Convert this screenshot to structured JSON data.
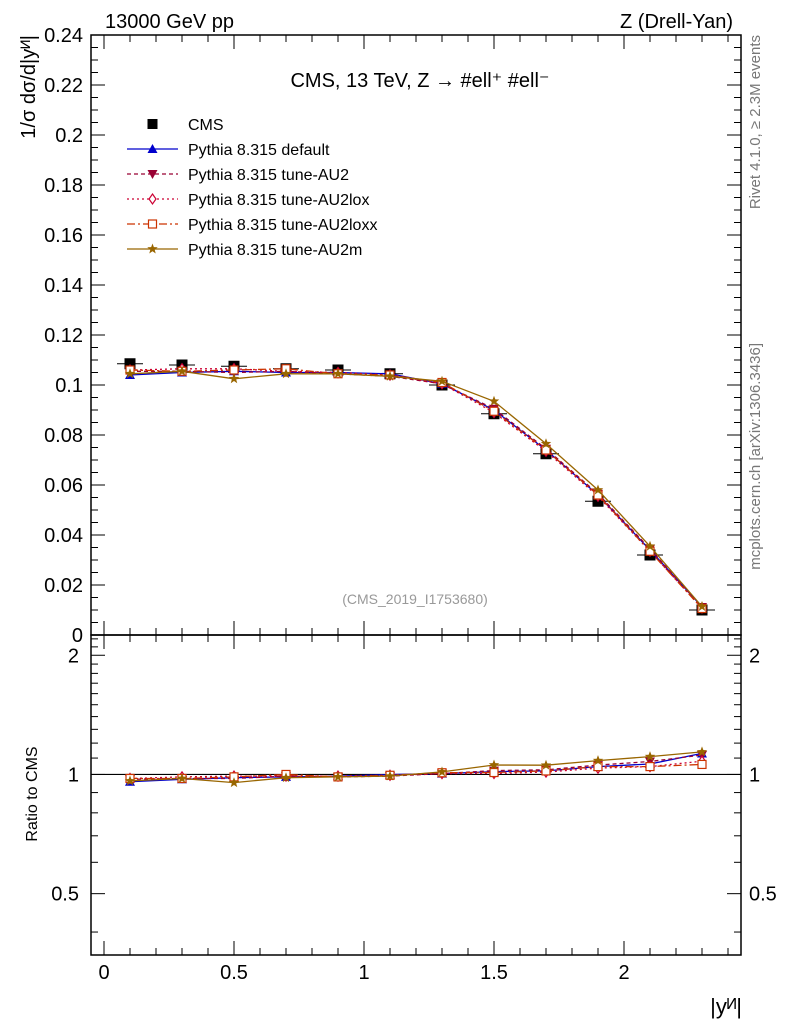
{
  "header": {
    "left": "13000 GeV pp",
    "right": "Z (Drell-Yan)"
  },
  "side": {
    "rivet": "Rivet 4.1.0, ≥ 2.3M events",
    "mcplots": "mcplots.cern.ch [arXiv:1306.3436]"
  },
  "chart_data": {
    "type": "line",
    "title": "CMS, 13 TeV, Z →  #ell⁺ #ell⁻",
    "analysis_tag": "(CMS_2019_I1753680)",
    "xlabel": "|yᴻ|",
    "ylabel": "1/σ dσ/d|yᴻ|",
    "ratio_ylabel": "Ratio to CMS",
    "xlim": [
      -0.05,
      2.45
    ],
    "ylim": [
      0,
      0.24
    ],
    "ratio_ylim": [
      0.35,
      2.25
    ],
    "x_ticks": [
      0,
      0.5,
      1,
      1.5,
      2
    ],
    "x_tick_labels": [
      "0",
      "0.5",
      "1",
      "1.5",
      "2"
    ],
    "y_ticks": [
      0.02,
      0.04,
      0.06,
      0.08,
      0.1,
      0.12,
      0.14,
      0.16,
      0.18,
      0.2,
      0.22,
      0.24
    ],
    "y_tick_labels": [
      "0.02",
      "0.04",
      "0.06",
      "0.08",
      "0.1",
      "0.12",
      "0.14",
      "0.16",
      "0.18",
      "0.2",
      "0.22",
      "0.24"
    ],
    "y_zero_label": "0",
    "ratio_ticks": [
      0.5,
      1,
      2
    ],
    "ratio_tick_labels": [
      "0.5",
      "1",
      "2"
    ],
    "x": [
      0.1,
      0.3,
      0.5,
      0.7,
      0.9,
      1.1,
      1.3,
      1.5,
      1.7,
      1.9,
      2.1,
      2.3
    ],
    "data": {
      "name": "CMS",
      "values": [
        0.1085,
        0.108,
        0.1075,
        0.1065,
        0.106,
        0.1045,
        0.1,
        0.0885,
        0.0725,
        0.0535,
        0.032,
        0.01
      ]
    },
    "series": [
      {
        "name": "Pythia 8.315 default",
        "color": "#0000cc",
        "dash": "",
        "marker": "triangle-up",
        "values": [
          0.104,
          0.105,
          0.1055,
          0.105,
          0.105,
          0.1045,
          0.1005,
          0.09,
          0.074,
          0.056,
          0.034,
          0.0113
        ]
      },
      {
        "name": "Pythia 8.315 tune-AU2",
        "color": "#990033",
        "dash": "4,3",
        "marker": "triangle-down",
        "values": [
          0.1055,
          0.1055,
          0.105,
          0.1055,
          0.1045,
          0.1035,
          0.1005,
          0.0905,
          0.0745,
          0.0565,
          0.0345,
          0.0112
        ]
      },
      {
        "name": "Pythia 8.315 tune-AU2lox",
        "color": "#cc0033",
        "dash": "2,3",
        "marker": "diamond-open",
        "values": [
          0.106,
          0.1065,
          0.1065,
          0.1055,
          0.105,
          0.104,
          0.1005,
          0.089,
          0.0735,
          0.0555,
          0.0335,
          0.0108
        ]
      },
      {
        "name": "Pythia 8.315 tune-AU2loxx",
        "color": "#cc3300",
        "dash": "8,3,2,3",
        "marker": "square-open",
        "values": [
          0.106,
          0.1055,
          0.106,
          0.1065,
          0.1045,
          0.104,
          0.101,
          0.0895,
          0.074,
          0.056,
          0.0335,
          0.0106
        ]
      },
      {
        "name": "Pythia 8.315 tune-AU2m",
        "color": "#996600",
        "dash": "",
        "marker": "star",
        "values": [
          0.1045,
          0.1055,
          0.1025,
          0.1045,
          0.1045,
          0.1035,
          0.1015,
          0.0935,
          0.0765,
          0.058,
          0.0355,
          0.0114
        ]
      }
    ]
  }
}
